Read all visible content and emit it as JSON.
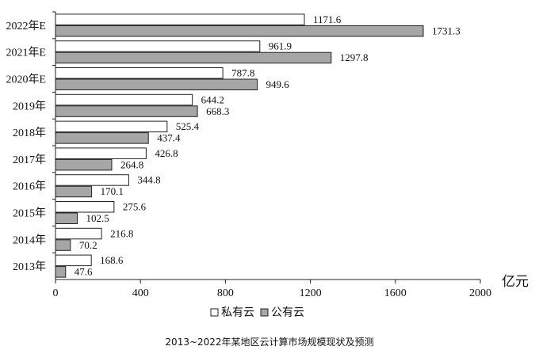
{
  "chart_data": {
    "type": "bar",
    "orientation": "horizontal",
    "categories": [
      "2022年E",
      "2021年E",
      "2020年E",
      "2019年",
      "2018年",
      "2017年",
      "2016年",
      "2015年",
      "2014年",
      "2013年"
    ],
    "series": [
      {
        "name": "私有云",
        "color": "#ffffff",
        "values": [
          1171.6,
          961.9,
          787.8,
          644.2,
          525.4,
          426.8,
          344.8,
          275.6,
          216.8,
          168.6
        ]
      },
      {
        "name": "公有云",
        "color": "#a6a6a6",
        "values": [
          1731.3,
          1297.8,
          949.6,
          668.3,
          437.4,
          264.8,
          170.1,
          102.5,
          70.2,
          47.6
        ]
      }
    ],
    "value_labels": [
      [
        "1171.6",
        "961.9",
        "787.8",
        "644.2",
        "525.4",
        "426.8",
        "344.8",
        "275.6",
        "216.8",
        "168.6"
      ],
      [
        "1731.3",
        "1297.8",
        "949.6",
        "668.3",
        "437.4",
        "264.8",
        "170.1",
        "102.5",
        "70.2",
        "47.6"
      ]
    ],
    "xlim": [
      0,
      2000
    ],
    "xticks": [
      0,
      400,
      800,
      1200,
      1600,
      2000
    ],
    "xtick_labels": [
      "0",
      "400",
      "800",
      "1200",
      "1600",
      "2000"
    ],
    "unit": "亿元",
    "title": "2013~2022年某地区云计算市场规模现状及预测",
    "legend_position": "bottom-center",
    "grid": false
  }
}
